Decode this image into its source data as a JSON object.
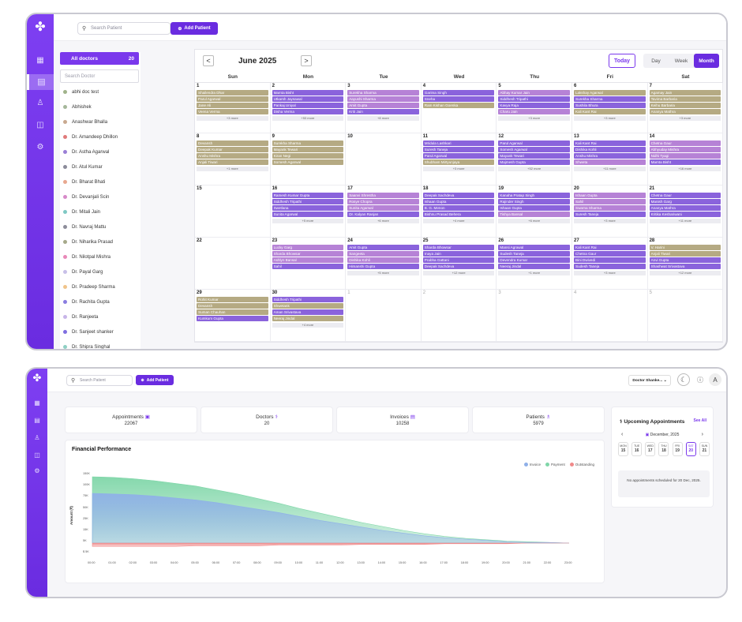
{
  "search_placeholder": "Search Patient",
  "add_patient": "Add Patient",
  "calendar": {
    "all_doctors": "All doctors",
    "all_doctors_count": "20",
    "search_doctor": "Search Doctor",
    "doctors": [
      {
        "name": "abhi doc test",
        "color": "#a0b38a"
      },
      {
        "name": "Abhishek",
        "color": "#a5b79a"
      },
      {
        "name": "Anashwar Bhalla",
        "color": "#c9a98f"
      },
      {
        "name": "Dr. Amandeep Dhillon",
        "color": "#e07a7a"
      },
      {
        "name": "Dr. Astha Agarwal",
        "color": "#9a7fd6"
      },
      {
        "name": "Dr. Atul Kumar",
        "color": "#8b8b9a"
      },
      {
        "name": "Dr. Bharat Bhati",
        "color": "#e8a88f"
      },
      {
        "name": "Dr. Devanjali Scin",
        "color": "#d78ac9"
      },
      {
        "name": "Dr. Mitali Jain",
        "color": "#7fc9c4"
      },
      {
        "name": "Dr. Navraj Mattu",
        "color": "#8d8d9a"
      },
      {
        "name": "Dr. Niharika Prasad",
        "color": "#a6a98a"
      },
      {
        "name": "Dr. Nilotpal Mishra",
        "color": "#e889b8"
      },
      {
        "name": "Dr. Payal Garg",
        "color": "#c8c0e8"
      },
      {
        "name": "Dr. Pradeep Sharma",
        "color": "#f0c48a"
      },
      {
        "name": "Dr. Rachita Gupta",
        "color": "#8a7de0"
      },
      {
        "name": "Dr. Ranjeeta",
        "color": "#c8b5e8"
      },
      {
        "name": "Dr. Sanjeet shanker",
        "color": "#7f6ee0"
      },
      {
        "name": "Dr. Shipra Singhal",
        "color": "#8fd0c4"
      }
    ],
    "prev": "<",
    "next": ">",
    "month": "June 2025",
    "today": "Today",
    "views": [
      "Day",
      "Week",
      "Month"
    ],
    "weekdays": [
      "Sun",
      "Mon",
      "Tue",
      "Wed",
      "Thu",
      "Fri",
      "Sat"
    ],
    "weeks": [
      [
        {
          "d": "1",
          "ev": [
            [
              "Shailendra Dhar",
              "o"
            ],
            [
              "Parul Agarwal",
              "o"
            ],
            [
              "Jane Ali",
              "o"
            ],
            [
              "Veena Verma",
              "o"
            ]
          ],
          "more": "+3 more"
        },
        {
          "d": "2",
          "ev": [
            [
              "Mamta Bisht",
              "p"
            ],
            [
              "Utkarsh Jaysawal",
              "p"
            ],
            [
              "Pankaj Uniyal",
              "p"
            ],
            [
              "Disha Verma",
              "p"
            ]
          ],
          "more": "+53 more"
        },
        {
          "d": "3",
          "ev": [
            [
              "Surekha Sharma",
              "l"
            ],
            [
              "Aayushi Sharma",
              "l"
            ],
            [
              "Amit Gupta",
              "l"
            ],
            [
              "Kriti Jain",
              "p"
            ]
          ],
          "more": "+8 more"
        },
        {
          "d": "4",
          "ev": [
            [
              "Garima Singh",
              "p"
            ],
            [
              "Sneha",
              "p"
            ],
            [
              "Ram Kishan Goenka",
              "o"
            ]
          ],
          "more": ""
        },
        {
          "d": "5",
          "ev": [
            [
              "Abhay Kumar Jain",
              "l"
            ],
            [
              "Siddhesh Tripathi",
              "p"
            ],
            [
              "Kavya Raja",
              "p"
            ],
            [
              "Charu Jain",
              "l"
            ]
          ],
          "more": "+3 more"
        },
        {
          "d": "6",
          "ev": [
            [
              "Lakshay Agarwal",
              "o"
            ],
            [
              "Surekha Sharma",
              "p"
            ],
            [
              "Sushila Bhura",
              "p"
            ],
            [
              "Kali Kant Rai",
              "o"
            ]
          ],
          "more": "+3 more"
        },
        {
          "d": "7",
          "ev": [
            [
              "Agamay Jain",
              "o"
            ],
            [
              "Tavima Barbaria",
              "o"
            ],
            [
              "Keihu Barbaria",
              "o"
            ],
            [
              "Ananya Mathra",
              "o"
            ]
          ],
          "more": "+3 more"
        }
      ],
      [
        {
          "d": "8",
          "ev": [
            [
              "Devansh",
              "o"
            ],
            [
              "Deepak Kumar",
              "o"
            ],
            [
              "Anshu Mishra",
              "o"
            ],
            [
              "Anjali Tiwari",
              "o"
            ]
          ],
          "more": "+1 more"
        },
        {
          "d": "9",
          "ev": [
            [
              "Surekha Sharma",
              "o"
            ],
            [
              "Mayank Tewari",
              "o"
            ],
            [
              "Kiran Negi",
              "o"
            ],
            [
              "Somesh Agarwal",
              "o"
            ]
          ],
          "more": ""
        },
        {
          "d": "10",
          "ev": [],
          "more": ""
        },
        {
          "d": "11",
          "ev": [
            [
              "Mridula Lashkari",
              "p"
            ],
            [
              "Suresh Taneja",
              "p"
            ],
            [
              "Parul Agarwal",
              "p"
            ],
            [
              "Shubham Mirtyunjaya",
              "o"
            ]
          ],
          "more": "+3 more"
        },
        {
          "d": "12",
          "ev": [
            [
              "Parul Agarwal",
              "p"
            ],
            [
              "Somesh Agarwal",
              "p"
            ],
            [
              "Mayank Tewari",
              "p"
            ],
            [
              "Majmesh Gupta",
              "p"
            ]
          ],
          "more": "+52 more"
        },
        {
          "d": "13",
          "ev": [
            [
              "Kali Kant Rai",
              "p"
            ],
            [
              "Dishika Kohli",
              "p"
            ],
            [
              "Anshu Mishra",
              "p"
            ],
            [
              "Shweta",
              "l"
            ]
          ],
          "more": "+11 more"
        },
        {
          "d": "14",
          "ev": [
            [
              "Chetna Gaur",
              "l"
            ],
            [
              "Abhyuday Mishra",
              "l"
            ],
            [
              "Nidhi Tyagi",
              "l"
            ],
            [
              "Mamta Bisht",
              "p"
            ]
          ],
          "more": "+16 more"
        }
      ],
      [
        {
          "d": "15",
          "ev": [],
          "more": ""
        },
        {
          "d": "16",
          "ev": [
            [
              "Ramesh Kumar Gupta",
              "p"
            ],
            [
              "Siddhesh Tripathi",
              "p"
            ],
            [
              "Swetlana",
              "p"
            ],
            [
              "Sunita Agarwal",
              "p"
            ]
          ],
          "more": "+5 more"
        },
        {
          "d": "17",
          "ev": [
            [
              "Saanvi Shrestha",
              "l"
            ],
            [
              "Rosye Chopra",
              "l"
            ],
            [
              "Sunita Agarwal",
              "l"
            ],
            [
              "Dr. Kalyan Ranjan",
              "p"
            ]
          ],
          "more": "+6 more"
        },
        {
          "d": "18",
          "ev": [
            [
              "Deepak Sachdeva",
              "p"
            ],
            [
              "Ishaan Gupta",
              "p"
            ],
            [
              "B. G. Menon",
              "p"
            ],
            [
              "Bishnu Prasad Behera",
              "p"
            ]
          ],
          "more": "+4 more"
        },
        {
          "d": "19",
          "ev": [
            [
              "Kanaha Pratap Singh",
              "p"
            ],
            [
              "Rajinder Singh",
              "p"
            ],
            [
              "Ishaan Gupta",
              "p"
            ],
            [
              "Tishya Bansal",
              "l"
            ]
          ],
          "more": "+6 more"
        },
        {
          "d": "20",
          "ev": [
            [
              "Ishaan Gupta",
              "l"
            ],
            [
              "Sahil",
              "l"
            ],
            [
              "Swarna Sharma",
              "l"
            ],
            [
              "Suresh Taneja",
              "p"
            ]
          ],
          "more": "+3 more"
        },
        {
          "d": "21",
          "ev": [
            [
              "Chetna Gaur",
              "p"
            ],
            [
              "Manish Garg",
              "p"
            ],
            [
              "Ananya Mathra",
              "p"
            ],
            [
              "Kritika Keshariwani",
              "p"
            ]
          ],
          "more": "+11 more"
        }
      ],
      [
        {
          "d": "22",
          "ev": [],
          "more": ""
        },
        {
          "d": "23",
          "ev": [
            [
              "Lucky Garg",
              "l"
            ],
            [
              "Sharda Bhowsar",
              "l"
            ],
            [
              "Ashlyn Bansal",
              "l"
            ],
            [
              "Sahil",
              "p"
            ]
          ],
          "more": ""
        },
        {
          "d": "24",
          "ev": [
            [
              "Amit Gupta",
              "p"
            ],
            [
              "Sangeeta",
              "l"
            ],
            [
              "Dishika Kohli",
              "l"
            ],
            [
              "Himanshi Gupta",
              "p"
            ]
          ],
          "more": "+5 more"
        },
        {
          "d": "25",
          "ev": [
            [
              "Sharda Bhowsar",
              "p"
            ],
            [
              "Inaya Jain",
              "p"
            ],
            [
              "Prabha Gattani",
              "p"
            ],
            [
              "Deepak Sachdeva",
              "p"
            ]
          ],
          "more": "+12 more"
        },
        {
          "d": "26",
          "ev": [
            [
              "Mansi Agrawal",
              "p"
            ],
            [
              "Sudesh Taneja",
              "p"
            ],
            [
              "Devendra Kumar",
              "p"
            ],
            [
              "Neeraj Jindal",
              "p"
            ]
          ],
          "more": "+1 more"
        },
        {
          "d": "27",
          "ev": [
            [
              "Kali Kant Rai",
              "p"
            ],
            [
              "Chetna Gaur",
              "p"
            ],
            [
              "Bini Dwivedi",
              "p"
            ],
            [
              "Sudesh Taneja",
              "p"
            ]
          ],
          "more": "+3 more"
        },
        {
          "d": "28",
          "ev": [
            [
              "V. Harini",
              "o"
            ],
            [
              "Anjali Tiwari",
              "o"
            ],
            [
              "Anvi Gupta",
              "p"
            ],
            [
              "Shashwat Srivastava",
              "p"
            ]
          ],
          "more": "+12 more"
        }
      ],
      [
        {
          "d": "29",
          "ev": [
            [
              "Rohit Kumar",
              "o"
            ],
            [
              "Devansh",
              "o"
            ],
            [
              "Suman Chauhan",
              "o"
            ],
            [
              "Kumkum Gupta",
              "p"
            ]
          ],
          "more": ""
        },
        {
          "d": "30",
          "ev": [
            [
              "Siddhesh Tripathi",
              "p"
            ],
            [
              "Shwetank",
              "o"
            ],
            [
              "Aman Srivastava",
              "p"
            ],
            [
              "Neeraj Jindal",
              "o"
            ]
          ],
          "more": "+4 more"
        },
        {
          "d": "1",
          "ev": [],
          "more": "",
          "other": true
        },
        {
          "d": "2",
          "ev": [],
          "more": "",
          "other": true
        },
        {
          "d": "3",
          "ev": [],
          "more": "",
          "other": true
        },
        {
          "d": "4",
          "ev": [],
          "more": "",
          "other": true
        },
        {
          "d": "5",
          "ev": [],
          "more": "",
          "other": true
        }
      ]
    ]
  },
  "dashboard": {
    "doctor_select": "Doctor Shanke...",
    "stats": [
      {
        "label": "Appointments",
        "icon": "calendar-icon",
        "value": "22067"
      },
      {
        "label": "Doctors",
        "icon": "doctor-icon",
        "value": "20"
      },
      {
        "label": "Invoices",
        "icon": "invoice-icon",
        "value": "10258"
      },
      {
        "label": "Patients",
        "icon": "patients-icon",
        "value": "5979"
      }
    ],
    "fin_title": "Financial Performance",
    "legend": [
      {
        "name": "Invoice",
        "color": "#8fb0e8"
      },
      {
        "name": "Payment",
        "color": "#7fd6a8"
      },
      {
        "name": "Outstanding",
        "color": "#f08a8a"
      }
    ],
    "yaxis_label": "Amount (₹)",
    "upcoming_title": "Upcoming Appointments",
    "see_all": "See All",
    "month": "December, 2025",
    "week": [
      [
        "MON",
        "15"
      ],
      [
        "TUE",
        "16"
      ],
      [
        "WED",
        "17"
      ],
      [
        "THU",
        "18"
      ],
      [
        "FRI",
        "19"
      ],
      [
        "SAT",
        "20"
      ],
      [
        "SUN",
        "21"
      ]
    ],
    "selected_day": "20",
    "no_appointments": "No appointments scheduled for 20 Dec, 2025."
  },
  "chart_data": {
    "type": "area",
    "ylabel": "Amount (₹)",
    "y_ticks": [
      "150K",
      "100K",
      "75K",
      "50K",
      "25K",
      "15K",
      "5K",
      "$ 5K"
    ],
    "x": [
      "00:00",
      "01:00",
      "02:00",
      "03:00",
      "04:00",
      "05:00",
      "06:00",
      "07:00",
      "08:00",
      "09:00",
      "10:00",
      "11:00",
      "12:00",
      "13:00",
      "14:00",
      "15:00",
      "16:00",
      "17:00",
      "18:00",
      "19:00",
      "20:00",
      "21:00",
      "22:00",
      "23:00"
    ],
    "series": [
      {
        "name": "Payment",
        "color": "#7fd6a8",
        "values": [
          100,
          99,
          97,
          94,
          90,
          86,
          80,
          74,
          67,
          60,
          52,
          45,
          38,
          31,
          25,
          19,
          14,
          10,
          7,
          5,
          3,
          2,
          1,
          0
        ]
      },
      {
        "name": "Invoice",
        "color": "#8fb0e8",
        "values": [
          75,
          74,
          73,
          71,
          68,
          65,
          61,
          56,
          51,
          46,
          40,
          34,
          29,
          24,
          19,
          15,
          11,
          8,
          6,
          4,
          2,
          1,
          1,
          0
        ]
      },
      {
        "name": "Outstanding",
        "color": "#f08a8a",
        "values": [
          -5,
          -5,
          -5,
          -5,
          -5,
          -4,
          -4,
          -4,
          -4,
          -3,
          -3,
          -3,
          -3,
          -2,
          -2,
          -2,
          -2,
          -1,
          -1,
          -1,
          -1,
          0,
          0,
          0
        ]
      }
    ]
  }
}
